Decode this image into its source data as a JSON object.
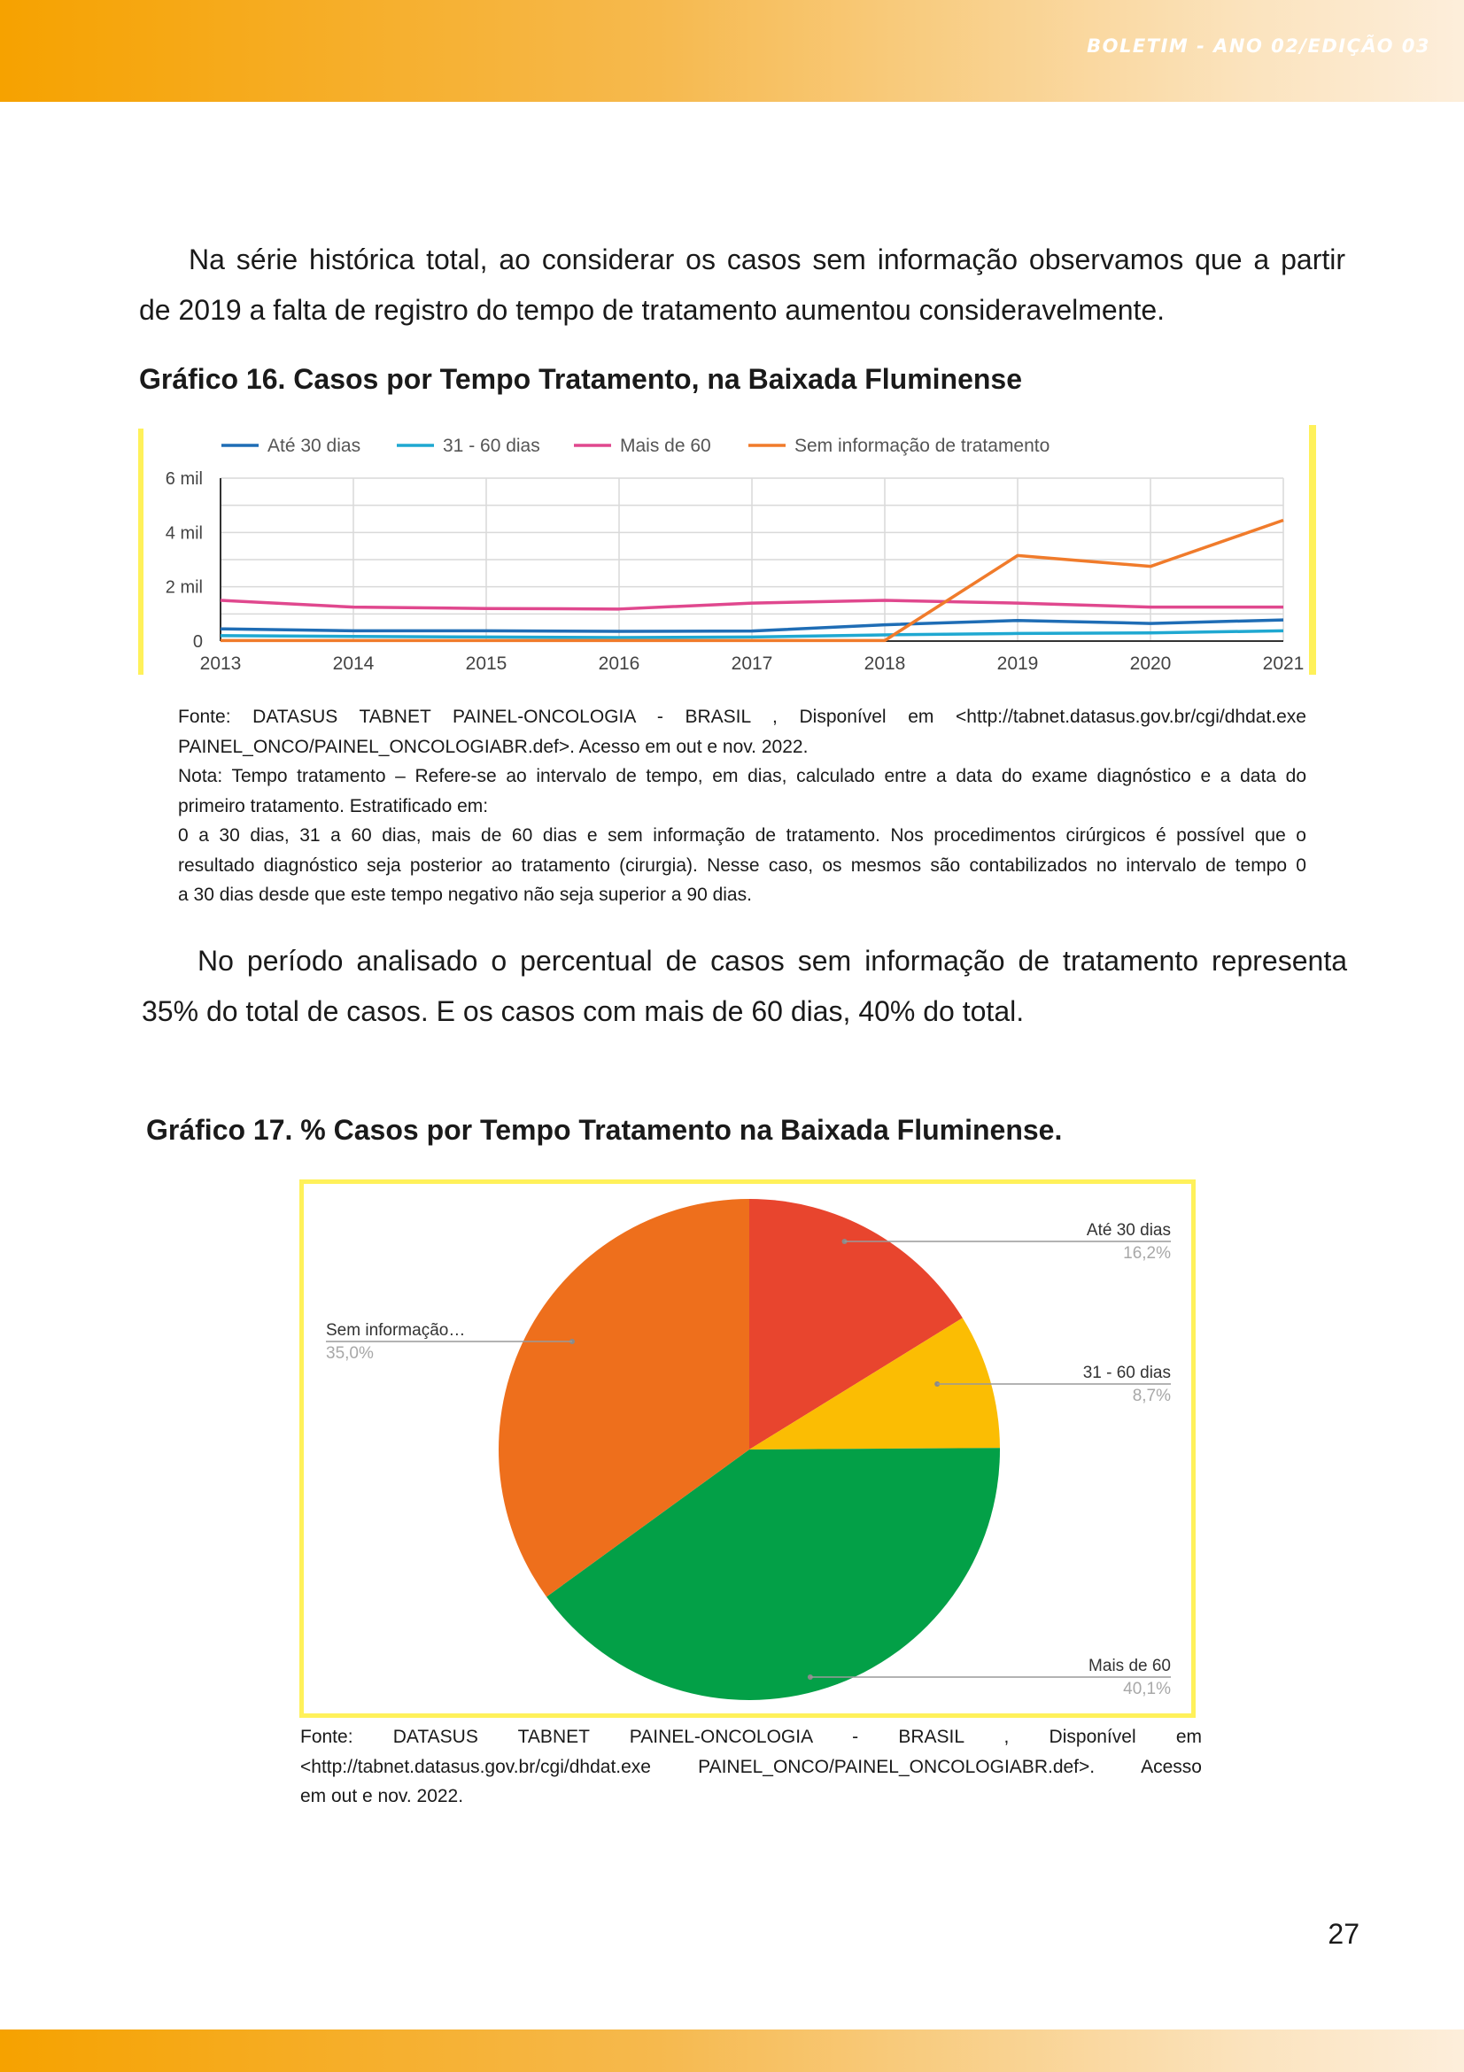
{
  "header": {
    "title": "BOLETIM - ANO 02/EDIÇÃO 03"
  },
  "intro_paragraph": {
    "line1": "Na série histórica total, ao considerar os casos sem informação observamos que a partir",
    "line2": "de 2019 a falta de registro do tempo de tratamento aumentou consideravelmente."
  },
  "chart16": {
    "caption": "Gráfico 16. Casos por Tempo Tratamento, na Baixada Fluminense"
  },
  "source16": {
    "line1": "Fonte: DATASUS TABNET PAINEL-ONCOLOGIA - BRASIL , Disponível em <http://tabnet.datasus.gov.br/cgi/dhdat.exe",
    "line2": "PAINEL_ONCO/PAINEL_ONCOLOGIABR.def>. Acesso em out e nov. 2022.",
    "line3": "Nota: Tempo tratamento – Refere-se ao intervalo de tempo, em dias, calculado entre a data do exame diagnóstico e a data do",
    "line4": "primeiro tratamento. Estratificado em:",
    "line5": "0 a 30 dias, 31 a 60 dias, mais de 60 dias e sem informação de tratamento. Nos procedimentos cirúrgicos é possível que o",
    "line6": "resultado diagnóstico seja posterior ao tratamento (cirurgia). Nesse caso, os mesmos são contabilizados no intervalo de tempo 0",
    "line7": "a 30 dias desde que este tempo negativo não seja superior a 90 dias."
  },
  "middle_paragraph": {
    "line1": "No período analisado o percentual de casos sem informação de tratamento representa",
    "line2": "35% do total de casos. E os casos com mais de 60 dias, 40% do total."
  },
  "chart17": {
    "caption": "Gráfico 17. % Casos por Tempo Tratamento na Baixada Fluminense."
  },
  "source17": {
    "line1": "Fonte: DATASUS TABNET PAINEL-ONCOLOGIA - BRASIL , Disponível em",
    "line2": "<http://tabnet.datasus.gov.br/cgi/dhdat.exe PAINEL_ONCO/PAINEL_ONCOLOGIABR.def>. Acesso",
    "line3": "em out e nov. 2022."
  },
  "page_number": "27",
  "colors": {
    "band_start": "#f6a200",
    "band_end": "#fdeedb",
    "frame_yellow": "#fff15a"
  },
  "chart_data": [
    {
      "type": "line",
      "x": [
        "2013",
        "2014",
        "2015",
        "2016",
        "2017",
        "2018",
        "2019",
        "2020",
        "2021"
      ],
      "y_ticks": [
        "0",
        "2 mil",
        "4 mil",
        "6 mil"
      ],
      "ylim": [
        0,
        6000
      ],
      "grid": true,
      "legend_position": "top",
      "series": [
        {
          "name": "Até 30 dias",
          "color": "#1f6db5",
          "values": [
            450,
            380,
            380,
            360,
            370,
            600,
            760,
            650,
            780
          ]
        },
        {
          "name": "31 - 60 dias",
          "color": "#1fa8d1",
          "values": [
            200,
            170,
            150,
            130,
            150,
            230,
            280,
            300,
            380
          ]
        },
        {
          "name": "Mais de 60",
          "color": "#e0488e",
          "values": [
            1500,
            1250,
            1200,
            1180,
            1400,
            1500,
            1400,
            1250,
            1250
          ]
        },
        {
          "name": "Sem informação de tratamento",
          "color": "#f07b2b",
          "values": [
            20,
            20,
            20,
            20,
            20,
            20,
            3150,
            2750,
            4450
          ]
        }
      ]
    },
    {
      "type": "pie",
      "slices": [
        {
          "label": "Até 30 dias",
          "value": 16.2,
          "value_label": "16,2%",
          "color": "#e8452e"
        },
        {
          "label": "31 - 60 dias",
          "value": 8.7,
          "value_label": "8,7%",
          "color": "#fbbd03"
        },
        {
          "label": "Mais de 60",
          "value": 40.1,
          "value_label": "40,1%",
          "color": "#03a047"
        },
        {
          "label": "Sem informação…",
          "value": 35.0,
          "value_label": "35,0%",
          "color": "#ee6f1c"
        }
      ]
    }
  ]
}
